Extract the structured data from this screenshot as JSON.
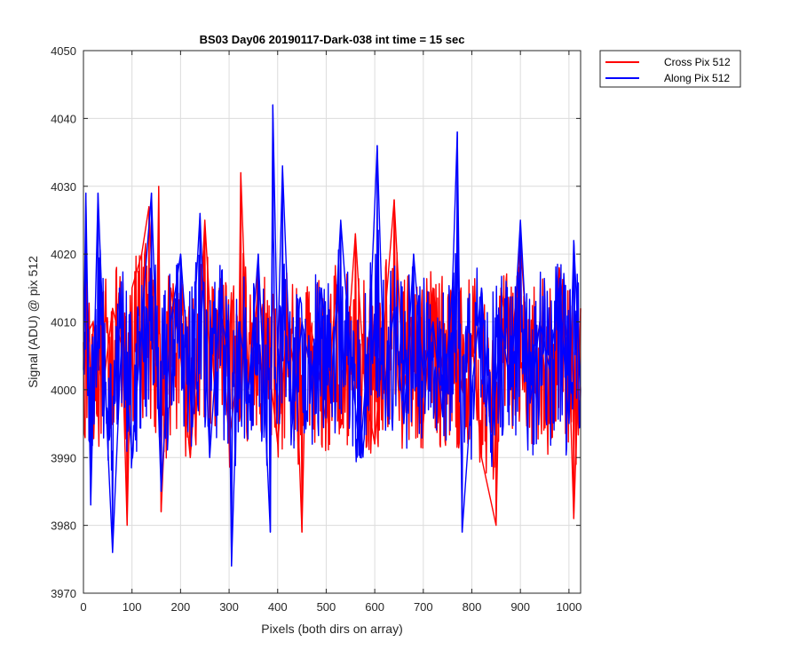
{
  "chart_data": {
    "type": "line",
    "title": "BS03 Day06 20190117-Dark-038 int time = 15 sec",
    "xlabel": "Pixels (both dirs on array)",
    "ylabel": "Signal (ADU) @ pix 512",
    "xlim": [
      0,
      1024
    ],
    "ylim": [
      3970,
      4050
    ],
    "xticks": [
      0,
      100,
      200,
      300,
      400,
      500,
      600,
      700,
      800,
      900,
      1000
    ],
    "yticks": [
      3970,
      3980,
      3990,
      4000,
      4010,
      4020,
      4030,
      4040,
      4050
    ],
    "grid": true,
    "legend_position": "outside-top-right",
    "series": [
      {
        "name": "Cross Pix 512",
        "color": "#ff0000",
        "x": [
          0,
          20,
          40,
          60,
          80,
          90,
          100,
          120,
          135,
          150,
          155,
          160,
          180,
          200,
          220,
          240,
          250,
          270,
          280,
          300,
          320,
          324,
          340,
          360,
          380,
          400,
          420,
          440,
          450,
          460,
          480,
          500,
          520,
          540,
          560,
          580,
          600,
          620,
          640,
          660,
          680,
          700,
          720,
          740,
          760,
          780,
          800,
          820,
          850,
          860,
          880,
          900,
          920,
          940,
          960,
          980,
          1000,
          1010,
          1024
        ],
        "y": [
          4007,
          4010,
          4000,
          4012,
          4006,
          3980,
          4015,
          4020,
          4027,
          4002,
          4030,
          3982,
          4015,
          4005,
          3990,
          4010,
          4025,
          4000,
          4015,
          3992,
          4005,
          4032,
          4000,
          4015,
          4005,
          3992,
          4010,
          4000,
          3979,
          4012,
          4005,
          3995,
          4015,
          4002,
          4023,
          4000,
          3992,
          4010,
          4028,
          4000,
          4012,
          3995,
          4015,
          4003,
          4010,
          4000,
          4008,
          3990,
          3980,
          4015,
          4004,
          4022,
          4000,
          4010,
          3995,
          4018,
          4005,
          3981,
          4012
        ]
      },
      {
        "name": "Along Pix 512",
        "color": "#0000ff",
        "x": [
          0,
          5,
          15,
          30,
          45,
          60,
          80,
          100,
          125,
          140,
          160,
          180,
          200,
          220,
          240,
          260,
          280,
          300,
          305,
          320,
          340,
          360,
          385,
          390,
          400,
          410,
          430,
          450,
          470,
          490,
          510,
          530,
          550,
          570,
          590,
          605,
          620,
          640,
          660,
          680,
          700,
          720,
          740,
          760,
          770,
          780,
          800,
          820,
          840,
          860,
          880,
          900,
          920,
          940,
          960,
          980,
          1000,
          1010,
          1024
        ],
        "y": [
          4003,
          4029,
          3983,
          4029,
          4000,
          3976,
          4010,
          3990,
          4015,
          4029,
          3985,
          4010,
          4020,
          4000,
          4026,
          3990,
          4012,
          4005,
          3974,
          4010,
          4000,
          4020,
          3979,
          4042,
          4005,
          4033,
          3995,
          4010,
          4002,
          4015,
          3998,
          4025,
          4005,
          3990,
          4010,
          4036,
          4000,
          4012,
          3995,
          4020,
          4002,
          4010,
          3996,
          4015,
          4038,
          3979,
          4000,
          4015,
          3992,
          4010,
          4000,
          4025,
          3998,
          4010,
          4003,
          4015,
          3995,
          4022,
          4000
        ]
      }
    ]
  }
}
